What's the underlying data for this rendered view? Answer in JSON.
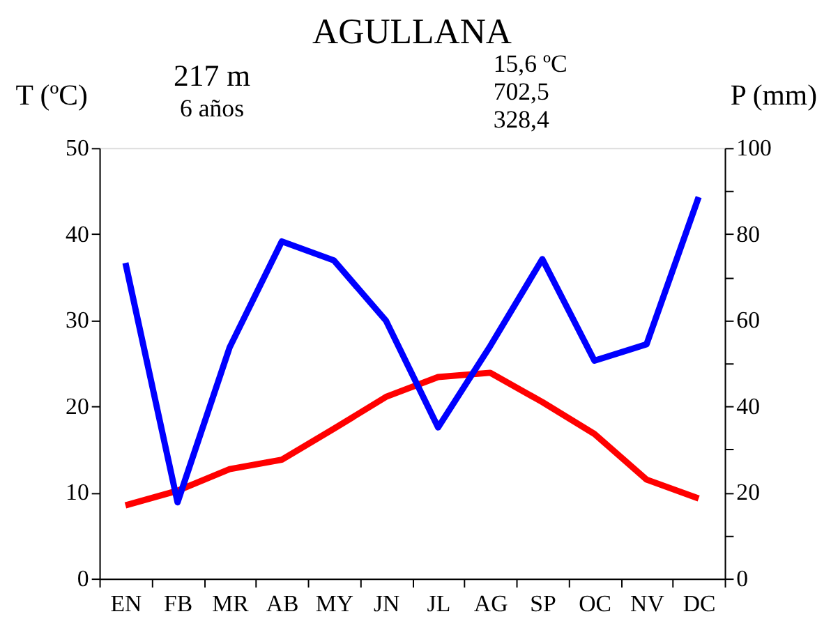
{
  "chart_data": {
    "type": "line",
    "title": "AGULLANA",
    "ylabel": "T (ºC)",
    "y2label": "P (mm)",
    "annotations": [
      "217 m",
      "6 años",
      "15,6 ºC",
      "702,5",
      "328,4"
    ],
    "categories": [
      "EN",
      "FB",
      "MR",
      "AB",
      "MY",
      "JN",
      "JL",
      "AG",
      "SP",
      "OC",
      "NV",
      "DC"
    ],
    "series": [
      {
        "color": "#ff0000",
        "values": [
          8.5,
          10.2,
          12.7,
          13.8,
          17.4,
          21.1,
          23.4,
          23.9,
          20.5,
          16.8,
          11.5,
          9.3
        ]
      },
      {
        "color": "#0000ff",
        "axis": "y2",
        "values": [
          73.3,
          17.7,
          53.7,
          78.3,
          73.9,
          59.9,
          35.1,
          54.0,
          74.2,
          50.6,
          54.4,
          88.6
        ]
      }
    ],
    "ylim": [
      0,
      50
    ],
    "yticks": [
      0,
      10,
      20,
      30,
      40,
      50
    ],
    "y2lim": [
      0,
      100
    ],
    "y2ticks": [
      0,
      {
        "value": 10,
        "label": null
      },
      20,
      {
        "value": 30,
        "label": null
      },
      40,
      {
        "value": 50,
        "label": null
      },
      60,
      {
        "value": 70,
        "label": null
      },
      80,
      {
        "value": 90,
        "label": null
      },
      100
    ],
    "grid": false,
    "marker": "none",
    "line_style": "solid"
  }
}
